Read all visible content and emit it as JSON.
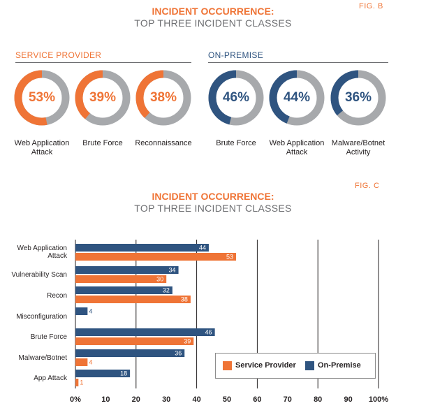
{
  "colors": {
    "service_provider": "#ef7436",
    "on_premise": "#2f5480",
    "ring_gray": "#a7a9ac"
  },
  "fig_b": {
    "fig_label": "FIG. B",
    "title_line1": "INCIDENT OCCURRENCE:",
    "title_line2": "TOP THREE INCIDENT CLASSES",
    "groups": [
      {
        "name": "SERVICE PROVIDER",
        "items": [
          {
            "pct": 53,
            "label_lines": [
              "Web Application",
              "Attack"
            ]
          },
          {
            "pct": 39,
            "label_lines": [
              "Brute Force"
            ]
          },
          {
            "pct": 38,
            "label_lines": [
              "Reconnaissance"
            ]
          }
        ]
      },
      {
        "name": "ON-PREMISE",
        "items": [
          {
            "pct": 46,
            "label_lines": [
              "Brute Force"
            ]
          },
          {
            "pct": 44,
            "label_lines": [
              "Web Application",
              "Attack"
            ]
          },
          {
            "pct": 36,
            "label_lines": [
              "Malware/Botnet",
              "Activity"
            ]
          }
        ]
      }
    ]
  },
  "chart_data": [
    {
      "type": "pie",
      "title": "INCIDENT OCCURRENCE: TOP THREE INCIDENT CLASSES",
      "subtitle": "SERVICE PROVIDER",
      "categories": [
        "Web Application Attack",
        "Brute Force",
        "Reconnaissance"
      ],
      "values": [
        53,
        39,
        38
      ]
    },
    {
      "type": "pie",
      "title": "INCIDENT OCCURRENCE: TOP THREE INCIDENT CLASSES",
      "subtitle": "ON-PREMISE",
      "categories": [
        "Brute Force",
        "Web Application Attack",
        "Malware/Botnet Activity"
      ],
      "values": [
        46,
        44,
        36
      ]
    },
    {
      "type": "bar",
      "fig_label": "FIG. C",
      "title_line1": "INCIDENT OCCURRENCE:",
      "title_line2": "TOP THREE INCIDENT CLASSES",
      "categories": [
        [
          "Web Application",
          "Attack"
        ],
        [
          "Vulnerability Scan"
        ],
        [
          "Recon"
        ],
        [
          "Misconfiguration"
        ],
        [
          "Brute Force"
        ],
        [
          "Malware/Botnet"
        ],
        [
          "App Attack"
        ]
      ],
      "series": [
        {
          "name": "On-Premise",
          "values": [
            44,
            34,
            32,
            4,
            46,
            36,
            18
          ]
        },
        {
          "name": "Service Provider",
          "values": [
            53,
            30,
            38,
            null,
            39,
            4,
            1
          ]
        }
      ],
      "x_ticks": [
        "0%",
        "10",
        "20",
        "30",
        "40",
        "50",
        "60",
        "70",
        "80",
        "90",
        "100%"
      ],
      "xlim": [
        0,
        100
      ],
      "grid": true,
      "legend_placement": "bottom-right",
      "legend": [
        "Service Provider",
        "On-Premise"
      ]
    }
  ]
}
